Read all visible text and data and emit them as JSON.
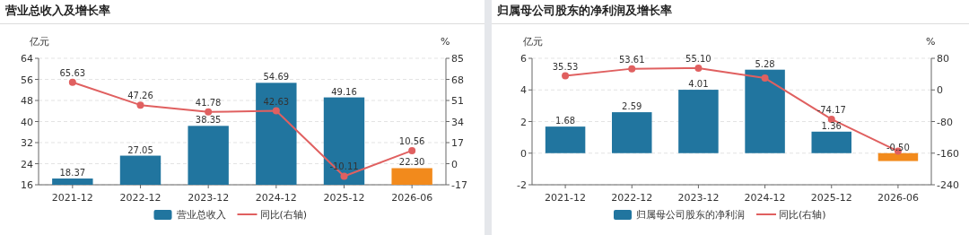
{
  "chart_data": [
    {
      "type": "bar",
      "title": "营业总收入及增长率",
      "ylabel": "亿元",
      "y2label": "%",
      "categories": [
        "2021-12",
        "2022-12",
        "2023-12",
        "2024-12",
        "2025-12",
        "2026-06"
      ],
      "ylim": [
        16,
        64
      ],
      "yticks": [
        16,
        24,
        32,
        40,
        48,
        56,
        64
      ],
      "y2lim": [
        -17,
        85
      ],
      "y2ticks": [
        -17,
        0,
        17,
        34,
        51,
        68,
        85
      ],
      "grid": "y",
      "legend": "bottom",
      "series": [
        {
          "name": "营业总收入",
          "color": "#21759f",
          "colors": [
            "#21759f",
            "#21759f",
            "#21759f",
            "#21759f",
            "#21759f",
            "#f28a1c"
          ],
          "values": [
            18.37,
            27.05,
            38.35,
            54.69,
            49.16,
            22.3
          ],
          "value_labels": [
            "18.37",
            "27.05",
            "38.35",
            "54.69",
            "49.16",
            "22.30"
          ]
        },
        {
          "name": "同比(右轴)",
          "type": "line",
          "axis": "y2",
          "color": "#e06060",
          "marker": "circle",
          "values": [
            65.63,
            47.26,
            41.78,
            42.63,
            -10.11,
            10.56
          ],
          "value_labels": [
            "65.63",
            "47.26",
            "41.78",
            "42.63",
            "-10.11",
            "10.56"
          ]
        }
      ]
    },
    {
      "type": "bar",
      "title": "归属母公司股东的净利润及增长率",
      "ylabel": "亿元",
      "y2label": "%",
      "categories": [
        "2021-12",
        "2022-12",
        "2023-12",
        "2024-12",
        "2025-12",
        "2026-06"
      ],
      "ylim": [
        -2,
        6
      ],
      "yticks": [
        -2,
        0,
        2,
        4,
        6
      ],
      "y2lim": [
        -240,
        80
      ],
      "y2ticks": [
        -240,
        -160,
        -80,
        0,
        80
      ],
      "grid": "y",
      "legend": "bottom",
      "series": [
        {
          "name": "归属母公司股东的净利润",
          "color": "#21759f",
          "colors": [
            "#21759f",
            "#21759f",
            "#21759f",
            "#21759f",
            "#21759f",
            "#f28a1c"
          ],
          "values": [
            1.68,
            2.59,
            4.01,
            5.28,
            1.36,
            -0.5
          ],
          "value_labels": [
            "1.68",
            "2.59",
            "4.01",
            "5.28",
            "1.36",
            "-0.50"
          ]
        },
        {
          "name": "同比(右轴)",
          "type": "line",
          "axis": "y2",
          "color": "#e06060",
          "marker": "circle",
          "values": [
            35.53,
            53.61,
            55.1,
            30,
            -74.17,
            -155
          ],
          "value_labels": [
            "35.53",
            "53.61",
            "55.10",
            null,
            "-74.17",
            null
          ]
        }
      ]
    }
  ]
}
